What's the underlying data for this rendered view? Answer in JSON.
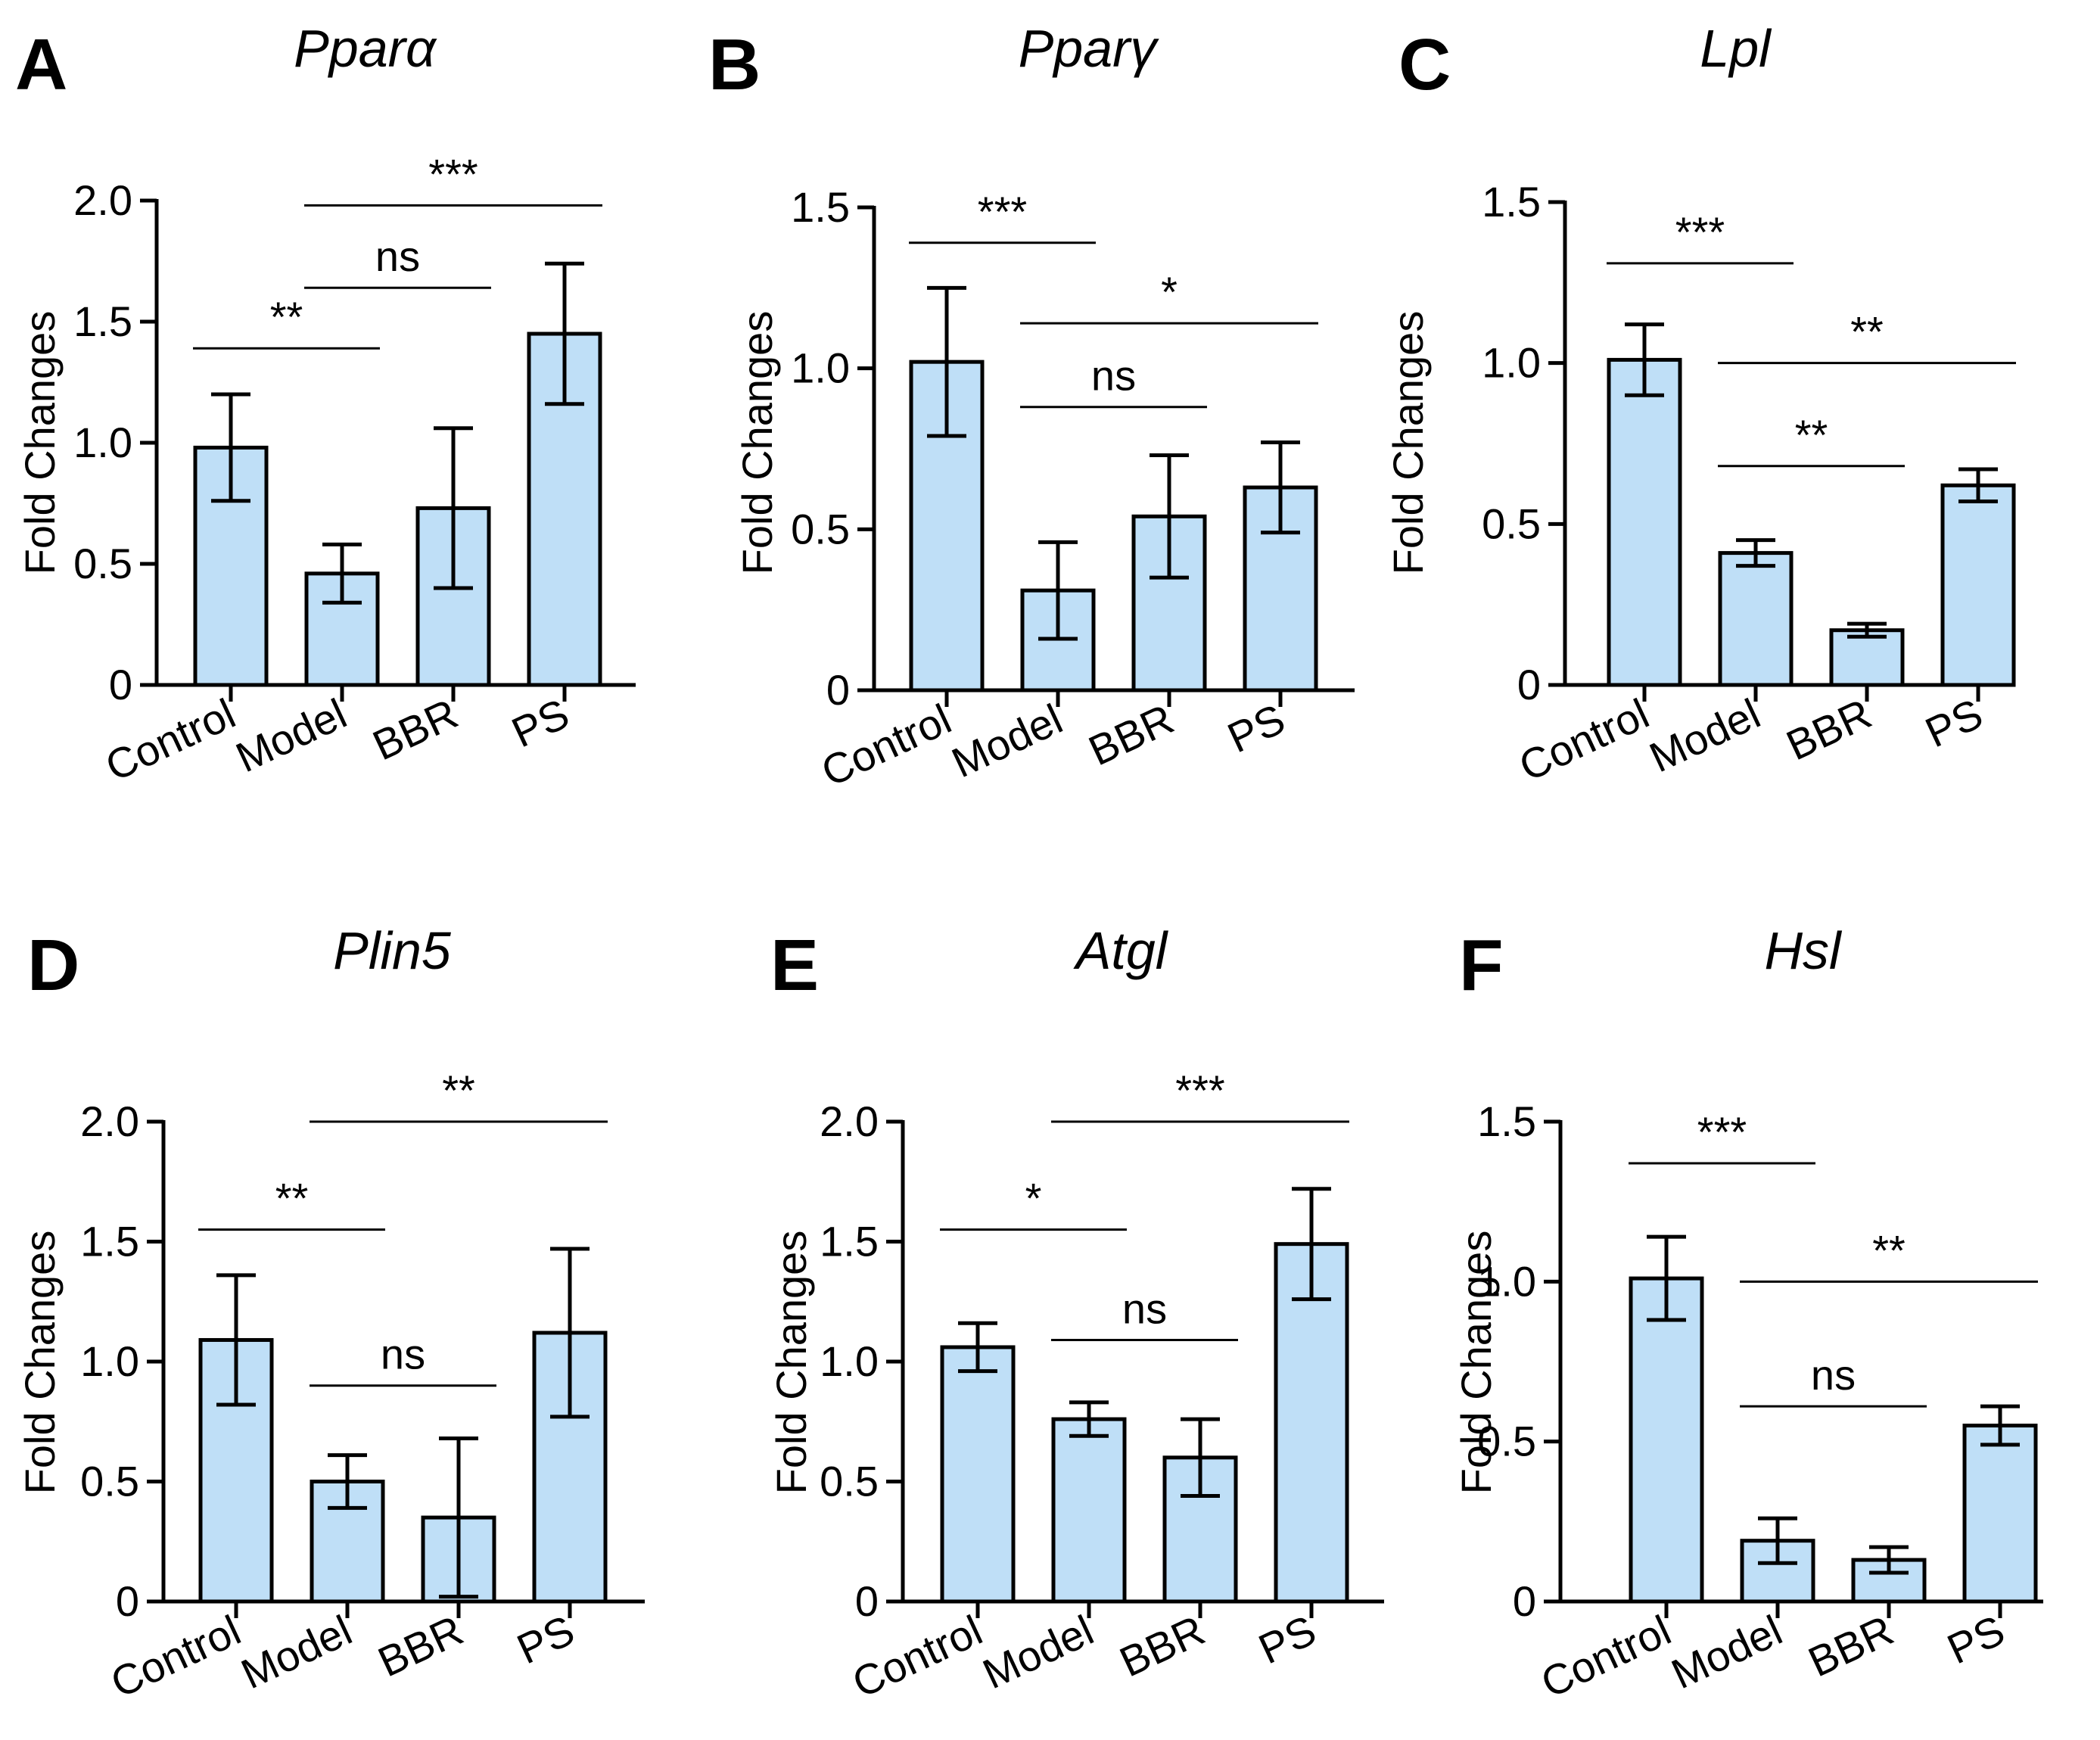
{
  "figure": {
    "bar_fill": "#bfdff7",
    "stroke": "#000000",
    "background": "#ffffff"
  },
  "chart_data": [
    {
      "panel": "A",
      "type": "bar",
      "title": "Pparα",
      "ylabel": "Fold Changes",
      "categories": [
        "Control",
        "Model",
        "BBR",
        "PS"
      ],
      "values": [
        0.98,
        0.46,
        0.73,
        1.45
      ],
      "errors": [
        0.22,
        0.12,
        0.33,
        0.29
      ],
      "ylim": [
        0,
        2.0
      ],
      "yticks": [
        0,
        0.5,
        1.0,
        1.5,
        2.0
      ],
      "ytick_labels": [
        "0",
        "0.5",
        "1.0",
        "1.5",
        "2.0"
      ],
      "significance": [
        {
          "from": 0,
          "to": 1,
          "label": "**",
          "y": 1.39
        },
        {
          "from": 1,
          "to": 2,
          "label": "ns",
          "y": 1.64
        },
        {
          "from": 1,
          "to": 3,
          "label": "***",
          "y": 1.98
        }
      ]
    },
    {
      "panel": "B",
      "type": "bar",
      "title": "Pparγ",
      "ylabel": "Fold Changes",
      "categories": [
        "Control",
        "Model",
        "BBR",
        "PS"
      ],
      "values": [
        1.02,
        0.31,
        0.54,
        0.63
      ],
      "errors": [
        0.23,
        0.15,
        0.19,
        0.14
      ],
      "ylim": [
        0,
        1.5
      ],
      "yticks": [
        0,
        0.5,
        1.0,
        1.5
      ],
      "ytick_labels": [
        "0",
        "0.5",
        "1.0",
        "1.5"
      ],
      "significance": [
        {
          "from": 0,
          "to": 1,
          "label": "***",
          "y": 1.39
        },
        {
          "from": 1,
          "to": 2,
          "label": "ns",
          "y": 0.88
        },
        {
          "from": 1,
          "to": 3,
          "label": "*",
          "y": 1.14
        }
      ]
    },
    {
      "panel": "C",
      "type": "bar",
      "title": "Lpl",
      "ylabel": "Fold Changes",
      "categories": [
        "Control",
        "Model",
        "BBR",
        "PS"
      ],
      "values": [
        1.01,
        0.41,
        0.17,
        0.62
      ],
      "errors": [
        0.11,
        0.04,
        0.02,
        0.05
      ],
      "ylim": [
        0,
        1.5
      ],
      "yticks": [
        0,
        0.5,
        1.0,
        1.5
      ],
      "ytick_labels": [
        "0",
        "0.5",
        "1.0",
        "1.5"
      ],
      "significance": [
        {
          "from": 0,
          "to": 1,
          "label": "***",
          "y": 1.31
        },
        {
          "from": 1,
          "to": 2,
          "label": "**",
          "y": 0.68
        },
        {
          "from": 1,
          "to": 3,
          "label": "**",
          "y": 1.0
        }
      ]
    },
    {
      "panel": "D",
      "type": "bar",
      "title": "Plin5",
      "ylabel": "Fold Changes",
      "categories": [
        "Control",
        "Model",
        "BBR",
        "PS"
      ],
      "values": [
        1.09,
        0.5,
        0.35,
        1.12
      ],
      "errors": [
        0.27,
        0.11,
        0.33,
        0.35
      ],
      "ylim": [
        0,
        2.0
      ],
      "yticks": [
        0,
        0.5,
        1.0,
        1.5,
        2.0
      ],
      "ytick_labels": [
        "0",
        "0.5",
        "1.0",
        "1.5",
        "2.0"
      ],
      "significance": [
        {
          "from": 0,
          "to": 1,
          "label": "**",
          "y": 1.55
        },
        {
          "from": 1,
          "to": 2,
          "label": "ns",
          "y": 0.9
        },
        {
          "from": 1,
          "to": 3,
          "label": "**",
          "y": 2.0
        }
      ]
    },
    {
      "panel": "E",
      "type": "bar",
      "title": "Atgl",
      "ylabel": "Fold Changes",
      "categories": [
        "Control",
        "Model",
        "BBR",
        "PS"
      ],
      "values": [
        1.06,
        0.76,
        0.6,
        1.49
      ],
      "errors": [
        0.1,
        0.07,
        0.16,
        0.23
      ],
      "ylim": [
        0,
        2.0
      ],
      "yticks": [
        0,
        0.5,
        1.0,
        1.5,
        2.0
      ],
      "ytick_labels": [
        "0",
        "0.5",
        "1.0",
        "1.5",
        "2.0"
      ],
      "significance": [
        {
          "from": 0,
          "to": 1,
          "label": "*",
          "y": 1.55
        },
        {
          "from": 1,
          "to": 2,
          "label": "ns",
          "y": 1.09
        },
        {
          "from": 1,
          "to": 3,
          "label": "***",
          "y": 2.0
        }
      ]
    },
    {
      "panel": "F",
      "type": "bar",
      "title": "Hsl",
      "ylabel": "Fold Changes",
      "categories": [
        "Control",
        "Model",
        "BBR",
        "PS"
      ],
      "values": [
        1.01,
        0.19,
        0.13,
        0.55
      ],
      "errors": [
        0.13,
        0.07,
        0.04,
        0.06
      ],
      "ylim": [
        0,
        1.5
      ],
      "yticks": [
        0,
        0.5,
        1.0,
        1.5
      ],
      "ytick_labels": [
        "0",
        "0.5",
        "1.0",
        "1.5"
      ],
      "significance": [
        {
          "from": 0,
          "to": 1,
          "label": "***",
          "y": 1.37
        },
        {
          "from": 1,
          "to": 2,
          "label": "ns",
          "y": 0.61
        },
        {
          "from": 1,
          "to": 3,
          "label": "**",
          "y": 1.0
        }
      ]
    }
  ]
}
